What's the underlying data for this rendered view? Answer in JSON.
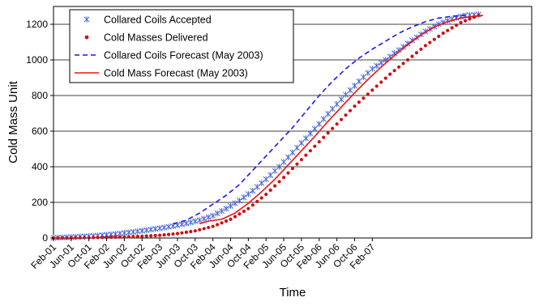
{
  "chart_data": {
    "type": "line",
    "title": "",
    "xlabel": "Time",
    "ylabel": "Cold Mass Unit",
    "ylim": [
      0,
      1300
    ],
    "yticks": [
      0,
      200,
      400,
      600,
      800,
      1000,
      1200
    ],
    "xticks": [
      "Feb-01",
      "Jun-01",
      "Oct-01",
      "Feb-02",
      "Jun-02",
      "Oct-02",
      "Feb-03",
      "Jun-03",
      "Oct-03",
      "Feb-04",
      "Jun-04",
      "Oct-04",
      "Feb-05",
      "Jun-05",
      "Oct-05",
      "Feb-06",
      "Jun-06",
      "Oct-06",
      "Feb-07"
    ],
    "x_unit": "month index (0 = Feb-01, 4 months per tick)",
    "grid": "horizontal",
    "legend_position": "top-left",
    "series": [
      {
        "name": "Collared Coils Accepted",
        "style": "asterisk-markers",
        "color": "#4a66d8",
        "points": [
          [
            0,
            1
          ],
          [
            3,
            4
          ],
          [
            6,
            8
          ],
          [
            9,
            12
          ],
          [
            12,
            18
          ],
          [
            15,
            25
          ],
          [
            18,
            34
          ],
          [
            21,
            44
          ],
          [
            24,
            55
          ],
          [
            27,
            67
          ],
          [
            30,
            82
          ],
          [
            33,
            100
          ],
          [
            36,
            125
          ],
          [
            39,
            165
          ],
          [
            42,
            210
          ],
          [
            45,
            265
          ],
          [
            48,
            330
          ],
          [
            51,
            400
          ],
          [
            54,
            480
          ],
          [
            57,
            560
          ],
          [
            60,
            640
          ],
          [
            63,
            725
          ],
          [
            66,
            805
          ],
          [
            69,
            880
          ],
          [
            72,
            950
          ],
          [
            75,
            1000
          ],
          [
            78,
            1055
          ],
          [
            81,
            1110
          ],
          [
            84,
            1160
          ],
          [
            87,
            1200
          ],
          [
            90,
            1230
          ],
          [
            93,
            1250
          ],
          [
            96,
            1255
          ]
        ]
      },
      {
        "name": "Cold Masses Delivered",
        "style": "dot-markers",
        "color": "#cc1111",
        "points": [
          [
            0,
            0
          ],
          [
            4,
            1
          ],
          [
            8,
            2
          ],
          [
            12,
            4
          ],
          [
            16,
            6
          ],
          [
            20,
            10
          ],
          [
            24,
            15
          ],
          [
            28,
            25
          ],
          [
            32,
            40
          ],
          [
            36,
            65
          ],
          [
            40,
            105
          ],
          [
            44,
            165
          ],
          [
            48,
            245
          ],
          [
            52,
            340
          ],
          [
            56,
            440
          ],
          [
            60,
            540
          ],
          [
            64,
            640
          ],
          [
            68,
            740
          ],
          [
            72,
            830
          ],
          [
            76,
            920
          ],
          [
            80,
            1000
          ],
          [
            84,
            1080
          ],
          [
            88,
            1150
          ],
          [
            92,
            1210
          ],
          [
            96,
            1250
          ]
        ]
      },
      {
        "name": "Collared Coils Forecast (May 2003)",
        "style": "dashed-line",
        "color": "#1a1aee",
        "points": [
          [
            27,
            80
          ],
          [
            30,
            100
          ],
          [
            33,
            140
          ],
          [
            36,
            190
          ],
          [
            39,
            240
          ],
          [
            42,
            300
          ],
          [
            45,
            380
          ],
          [
            48,
            460
          ],
          [
            51,
            540
          ],
          [
            54,
            620
          ],
          [
            57,
            710
          ],
          [
            60,
            800
          ],
          [
            63,
            880
          ],
          [
            66,
            950
          ],
          [
            69,
            1010
          ],
          [
            72,
            1060
          ],
          [
            75,
            1105
          ],
          [
            78,
            1150
          ],
          [
            81,
            1185
          ],
          [
            84,
            1215
          ],
          [
            87,
            1235
          ],
          [
            90,
            1245
          ],
          [
            93,
            1250
          ]
        ]
      },
      {
        "name": "Cold Mass Forecast (May 2003)",
        "style": "solid-line",
        "color": "#ee1111",
        "points": [
          [
            33,
            80
          ],
          [
            35,
            95
          ],
          [
            38,
            105
          ],
          [
            41,
            140
          ],
          [
            44,
            195
          ],
          [
            47,
            260
          ],
          [
            50,
            330
          ],
          [
            53,
            410
          ],
          [
            56,
            490
          ],
          [
            59,
            570
          ],
          [
            62,
            655
          ],
          [
            65,
            735
          ],
          [
            68,
            815
          ],
          [
            71,
            890
          ],
          [
            74,
            960
          ],
          [
            77,
            1025
          ],
          [
            80,
            1085
          ],
          [
            83,
            1140
          ],
          [
            86,
            1185
          ],
          [
            89,
            1215
          ],
          [
            92,
            1235
          ],
          [
            95,
            1245
          ],
          [
            97,
            1250
          ]
        ]
      }
    ]
  }
}
